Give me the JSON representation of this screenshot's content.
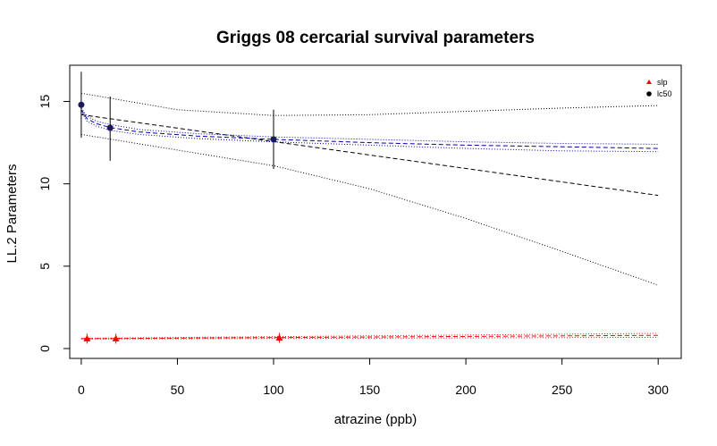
{
  "chart_data": {
    "type": "line",
    "title": "Griggs 08 cercarial survival parameters",
    "xlabel": "atrazine (ppb)",
    "ylabel": "LL.2 Parameters",
    "xlim": [
      -6,
      312
    ],
    "ylim": [
      -0.6,
      17.2
    ],
    "x_ticks": [
      0,
      50,
      100,
      150,
      200,
      250,
      300
    ],
    "y_ticks": [
      0,
      5,
      10,
      15
    ],
    "grid": false,
    "legend": {
      "placement": "top-right",
      "entries": [
        {
          "label": "slp",
          "symbol": "triangle",
          "color": "#ff0000"
        },
        {
          "label": "lc50",
          "symbol": "circle",
          "color": "#000000"
        }
      ]
    },
    "points": {
      "lc50": [
        {
          "x": 0,
          "y": 14.8,
          "lo": 12.8,
          "hi": 16.8,
          "color": "#1a1a5a"
        },
        {
          "x": 15,
          "y": 13.4,
          "lo": 11.4,
          "hi": 15.3,
          "color": "#1a1a5a"
        },
        {
          "x": 100,
          "y": 12.7,
          "lo": 10.9,
          "hi": 14.5,
          "color": "#1a1a5a"
        }
      ],
      "slp": [
        {
          "x": 3,
          "y": 0.6,
          "lo": 0.3,
          "hi": 0.9,
          "color": "#ff0000"
        },
        {
          "x": 18,
          "y": 0.6,
          "lo": 0.3,
          "hi": 0.9,
          "color": "#ff0000"
        },
        {
          "x": 103,
          "y": 0.65,
          "lo": 0.35,
          "hi": 0.95,
          "color": "#ff0000"
        }
      ]
    },
    "curves": [
      {
        "style": "dashed",
        "color": "#000000",
        "x": [
          0,
          300
        ],
        "y": [
          14.2,
          9.3
        ]
      },
      {
        "style": "dotted",
        "color": "#000000",
        "x": [
          0,
          50,
          100,
          150,
          200,
          250,
          300
        ],
        "y": [
          15.5,
          14.5,
          14.15,
          14.2,
          14.4,
          14.6,
          14.75
        ]
      },
      {
        "style": "dotted",
        "color": "#000000",
        "x": [
          0,
          100,
          150,
          200,
          250,
          300
        ],
        "y": [
          13.0,
          11.1,
          9.7,
          7.9,
          5.9,
          3.85
        ]
      },
      {
        "style": "dashed",
        "color": "#0000aa",
        "x": [
          0,
          3,
          8,
          15,
          30,
          60,
          100,
          150,
          200,
          250,
          300
        ],
        "y": [
          14.5,
          13.95,
          13.65,
          13.42,
          13.15,
          12.9,
          12.7,
          12.5,
          12.35,
          12.25,
          12.15
        ]
      },
      {
        "style": "dotted",
        "color": "#0000aa",
        "x": [
          0,
          3,
          8,
          15,
          30,
          60,
          100,
          150,
          200,
          250,
          300
        ],
        "y": [
          14.6,
          14.1,
          13.8,
          13.6,
          13.3,
          13.05,
          12.85,
          12.7,
          12.55,
          12.45,
          12.4
        ]
      },
      {
        "style": "dotted",
        "color": "#0000aa",
        "x": [
          0,
          3,
          8,
          15,
          30,
          60,
          100,
          150,
          200,
          250,
          300
        ],
        "y": [
          14.4,
          13.8,
          13.5,
          13.25,
          13.0,
          12.75,
          12.55,
          12.35,
          12.15,
          12.0,
          11.95
        ]
      },
      {
        "style": "dashed",
        "color": "#ff0000",
        "x": [
          0,
          300
        ],
        "y": [
          0.6,
          0.8
        ]
      },
      {
        "style": "dotted",
        "color": "#ff0000",
        "x": [
          0,
          300
        ],
        "y": [
          0.62,
          0.92
        ]
      },
      {
        "style": "dotted",
        "color": "#ff0000",
        "x": [
          0,
          300
        ],
        "y": [
          0.58,
          0.68
        ]
      }
    ]
  }
}
